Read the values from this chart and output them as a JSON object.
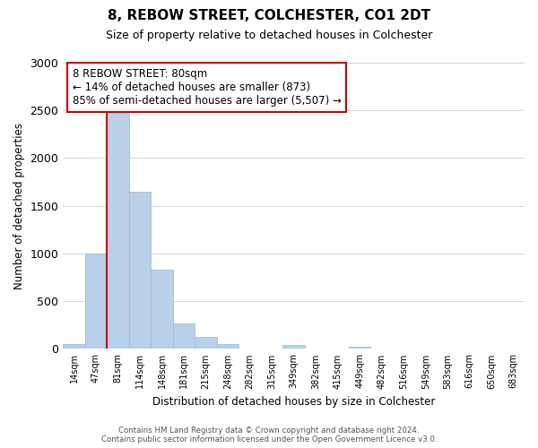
{
  "title": "8, REBOW STREET, COLCHESTER, CO1 2DT",
  "subtitle": "Size of property relative to detached houses in Colchester",
  "xlabel": "Distribution of detached houses by size in Colchester",
  "ylabel": "Number of detached properties",
  "bar_labels": [
    "14sqm",
    "47sqm",
    "81sqm",
    "114sqm",
    "148sqm",
    "181sqm",
    "215sqm",
    "248sqm",
    "282sqm",
    "315sqm",
    "349sqm",
    "382sqm",
    "415sqm",
    "449sqm",
    "482sqm",
    "516sqm",
    "549sqm",
    "583sqm",
    "616sqm",
    "650sqm",
    "683sqm"
  ],
  "bar_values": [
    55,
    1000,
    2470,
    1650,
    830,
    270,
    125,
    50,
    0,
    0,
    40,
    0,
    0,
    20,
    0,
    0,
    0,
    0,
    0,
    0,
    0
  ],
  "bar_color": "#b8d0e8",
  "bar_edge_color": "#a0bcd8",
  "property_line_label": "8 REBOW STREET: 80sqm",
  "annotation_line1": "← 14% of detached houses are smaller (873)",
  "annotation_line2": "85% of semi-detached houses are larger (5,507) →",
  "annotation_box_color": "#ffffff",
  "annotation_box_edge": "#cc0000",
  "vline_color": "#cc0000",
  "vline_x_index": 2,
  "ylim": [
    0,
    3000
  ],
  "yticks": [
    0,
    500,
    1000,
    1500,
    2000,
    2500,
    3000
  ],
  "footer_line1": "Contains HM Land Registry data © Crown copyright and database right 2024.",
  "footer_line2": "Contains public sector information licensed under the Open Government Licence v3.0.",
  "background_color": "#ffffff",
  "grid_color": "#cdd8ea"
}
